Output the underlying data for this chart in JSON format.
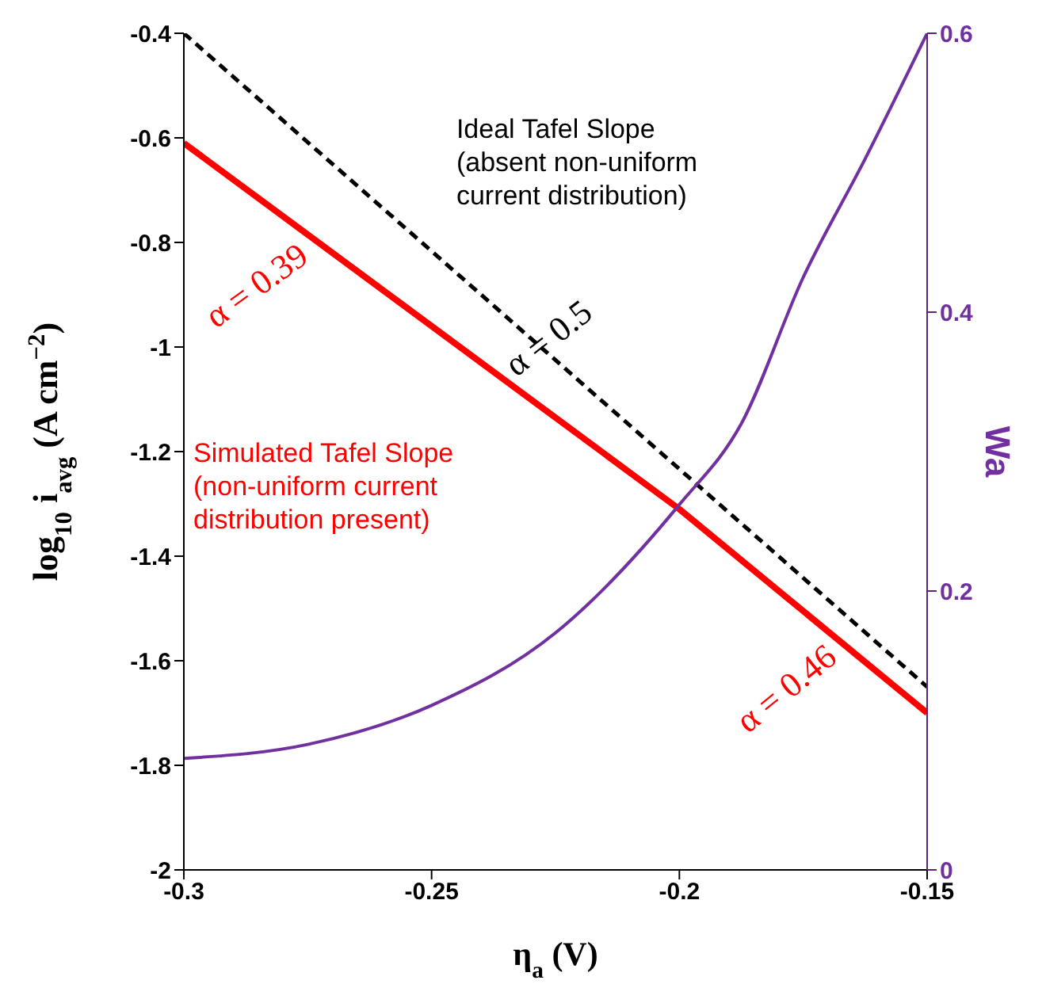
{
  "chart_data": {
    "type": "line",
    "xlabel": "η$_{a}$ (V)",
    "ylabel": "log$_{10}$ i$_{avg}$ (A cm$^{−2}$)",
    "y2label": "Wa",
    "xlim": [
      -0.3,
      -0.15
    ],
    "xticks": [
      -0.3,
      -0.25,
      -0.2,
      -0.15
    ],
    "ylim": [
      -2,
      -0.4
    ],
    "yticks": [
      -2,
      -1.8,
      -1.6,
      -1.4,
      -1.2,
      -1,
      -0.8,
      -0.6,
      -0.4
    ],
    "y2lim": [
      0,
      0.6
    ],
    "y2ticks": [
      0,
      0.2,
      0.4,
      0.6
    ],
    "series": [
      {
        "color": "#000000",
        "line_style": "dashed",
        "x": [
          -0.3,
          -0.15
        ],
        "values": [
          -0.4,
          -1.65
        ]
      },
      {
        "color": "#ff0000",
        "x": [
          -0.3,
          -0.2,
          -0.15
        ],
        "values": [
          -0.61,
          -1.31,
          -1.7
        ]
      },
      {
        "color": "#7030a0",
        "axis": "y2",
        "x": [
          -0.3,
          -0.275,
          -0.25,
          -0.225,
          -0.2,
          -0.1875,
          -0.175,
          -0.1625,
          -0.15
        ],
        "values": [
          0.08,
          0.09,
          0.118,
          0.17,
          0.262,
          0.32,
          0.425,
          0.51,
          0.6
        ]
      }
    ],
    "annotations": [
      "α = 0.39",
      {
        "text": "α = 0.5",
        "x": -0.225,
        "y": -1.0
      },
      "α = 0.46",
      "Ideal Tafel Slope\n(absent non-uniform\ncurrent distribution)",
      "Simulated Tafel Slope\n(non-uniform current\ndistribution present)"
    ],
    "grid": false,
    "marker": "none"
  }
}
